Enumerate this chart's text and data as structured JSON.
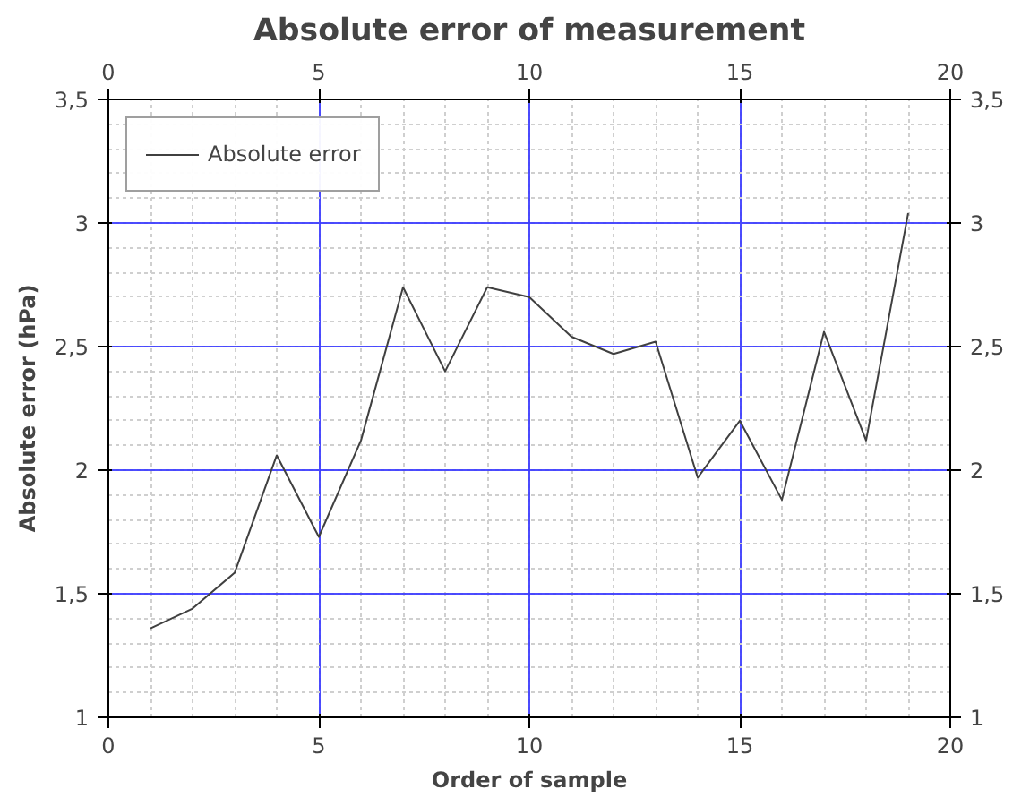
{
  "chart_data": {
    "type": "line",
    "title": "Absolute error of measurement",
    "xlabel": "Order of sample",
    "ylabel": "Absolute error (hPa)",
    "x": [
      1,
      2,
      3,
      4,
      5,
      6,
      7,
      8,
      9,
      10,
      11,
      12,
      13,
      14,
      15,
      16,
      17,
      18,
      19
    ],
    "series": [
      {
        "name": "Absolute error",
        "color": "#404040",
        "values": [
          1.36,
          1.44,
          1.585,
          2.06,
          1.73,
          2.12,
          2.74,
          2.4,
          2.74,
          2.7,
          2.54,
          2.47,
          2.52,
          1.97,
          2.2,
          1.88,
          2.56,
          2.12,
          3.04
        ]
      }
    ],
    "xlim": [
      0,
      20
    ],
    "xticks": [
      0,
      5,
      10,
      15,
      20
    ],
    "x2lim": [
      0,
      20
    ],
    "x2ticks": [
      0,
      5,
      10,
      15,
      20
    ],
    "ylim": [
      1,
      3.5
    ],
    "yticks": [
      1,
      {
        "value": 1.5,
        "label": "1,5"
      },
      2,
      {
        "value": 2.5,
        "label": "2,5"
      },
      3,
      {
        "value": 3.5,
        "label": "3,5"
      }
    ],
    "y2lim": [
      1,
      3.5
    ],
    "y2ticks": [
      1,
      {
        "value": 1.5,
        "label": "1,5"
      },
      2,
      {
        "value": 2.5,
        "label": "2,5"
      },
      3,
      {
        "value": 3.5,
        "label": "3,5"
      }
    ],
    "grid": true,
    "legend": "top left",
    "marker": "none",
    "line_style": "solid"
  }
}
